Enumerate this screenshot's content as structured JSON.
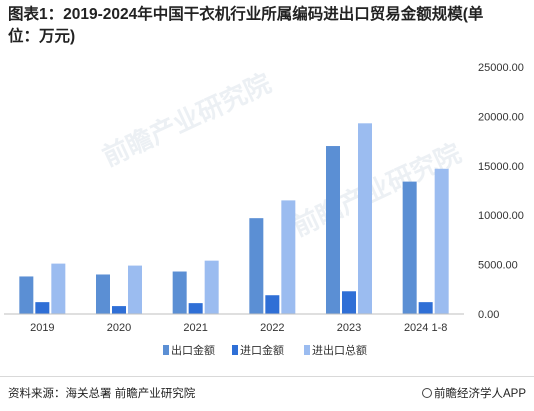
{
  "title": "图表1：2019-2024年中国干衣机行业所属编码进出口贸易金额规模(单位：万元)",
  "source": "资料来源：海关总署 前瞻产业研究院",
  "brand": "前瞻经济学人APP",
  "watermark": "前瞻产业研究院",
  "colors": {
    "export": "#5b8fd4",
    "import": "#2f6fd6",
    "total": "#9bbcf0"
  },
  "chart_data": {
    "type": "bar",
    "categories": [
      "2019",
      "2020",
      "2021",
      "2022",
      "2023",
      "2024 1-8"
    ],
    "series": [
      {
        "name": "出口金额",
        "values": [
          3800,
          4000,
          4300,
          9700,
          17000,
          13400
        ]
      },
      {
        "name": "进口金额",
        "values": [
          1200,
          800,
          1100,
          1900,
          2300,
          1200
        ]
      },
      {
        "name": "进出口总额",
        "values": [
          5100,
          4900,
          5400,
          11500,
          19300,
          14700
        ]
      }
    ],
    "ylim": [
      0,
      25000
    ],
    "yticks": [
      "0.00",
      "5000.00",
      "10000.00",
      "15000.00",
      "20000.00",
      "25000.00"
    ],
    "ytick_values": [
      0,
      5000,
      10000,
      15000,
      20000,
      25000
    ],
    "grid": false,
    "legend": "bottom"
  }
}
